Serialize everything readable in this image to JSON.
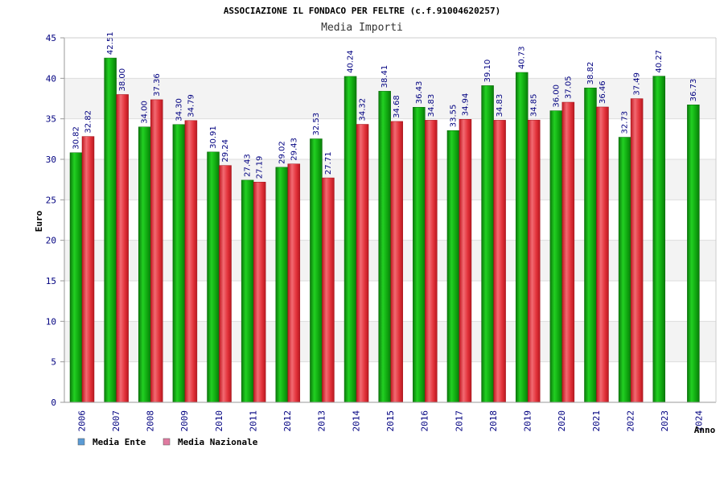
{
  "chart_data": {
    "type": "bar",
    "title": "ASSOCIAZIONE IL FONDACO PER FELTRE (c.f.91004620257)",
    "subtitle": "Media Importi",
    "xlabel": "Anno",
    "ylabel": "Euro",
    "ylim": [
      0,
      45
    ],
    "yticks": [
      0,
      5,
      10,
      15,
      20,
      25,
      30,
      35,
      40,
      45
    ],
    "grid": true,
    "legend_position": "bottom-left",
    "categories": [
      "2006",
      "2007",
      "2008",
      "2009",
      "2010",
      "2011",
      "2012",
      "2013",
      "2014",
      "2015",
      "2016",
      "2017",
      "2018",
      "2019",
      "2020",
      "2021",
      "2022",
      "2023",
      "2024"
    ],
    "series": [
      {
        "name": "Media Ente",
        "legend_color": "#5b9bd5",
        "bar_color": "#13b813",
        "values": [
          30.82,
          42.51,
          34.0,
          34.3,
          30.91,
          27.43,
          29.02,
          32.53,
          40.24,
          38.41,
          36.43,
          33.55,
          39.1,
          40.73,
          36.0,
          38.82,
          32.73,
          40.27,
          36.73
        ],
        "labels": [
          "30.82",
          "42.51",
          "34.00",
          "34.30",
          "30.91",
          "27.43",
          "29.02",
          "32.53",
          "40.24",
          "38.41",
          "36.43",
          "33.55",
          "39.10",
          "40.73",
          "36.00",
          "38.82",
          "32.73",
          "40.27",
          "36.73"
        ]
      },
      {
        "name": "Media Nazionale",
        "legend_color": "#e07aa0",
        "bar_color": "#e8333b",
        "values": [
          32.82,
          38.0,
          37.36,
          34.79,
          29.24,
          27.19,
          29.43,
          27.71,
          34.32,
          34.68,
          34.83,
          34.94,
          34.83,
          34.85,
          37.05,
          36.46,
          37.49,
          null,
          null
        ],
        "labels": [
          "32.82",
          "38.00",
          "37.36",
          "34.79",
          "29.24",
          "27.19",
          "29.43",
          "27.71",
          "34.32",
          "34.68",
          "34.83",
          "34.94",
          "34.83",
          "34.85",
          "37.05",
          "36.46",
          "37.49",
          "",
          ""
        ]
      }
    ]
  }
}
